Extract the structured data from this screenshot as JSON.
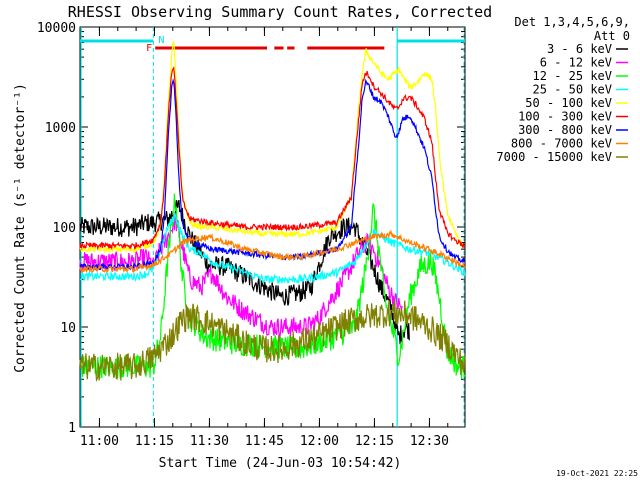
{
  "chart_data": {
    "type": "line",
    "title": "RHESSI Observing Summary Count Rates, Corrected",
    "xlabel": "Start Time (24-Jun-03 10:54:42)",
    "ylabel": "Corrected Count Rate (s⁻¹ detector⁻¹)",
    "x_ticks": [
      "11:00",
      "11:15",
      "11:30",
      "11:45",
      "12:00",
      "12:15",
      "12:30"
    ],
    "x_tick_minutes": [
      5.3,
      20.3,
      35.3,
      50.3,
      65.3,
      80.3,
      95.3
    ],
    "xlim_minutes": [
      0,
      105
    ],
    "y_scale": "log",
    "ylim": [
      1,
      10000
    ],
    "y_ticks": [
      "1",
      "10",
      "100",
      "1000",
      "10000"
    ],
    "legend_header": [
      "Det 1,3,4,5,6,9,",
      "Att 0"
    ],
    "legend_position": "right",
    "footer_date": "19-Oct-2021 22:25",
    "annotations": {
      "night_label": "N",
      "flare_label": "F"
    },
    "colors": {
      "night_bar": "#00e0e0",
      "flare_bar": "#e00000",
      "axis": "#000000",
      "background": "#ffffff"
    },
    "night_periods": [
      [
        0,
        20
      ],
      [
        86.5,
        105
      ]
    ],
    "night_boundaries": [
      20,
      86.5
    ],
    "flare_periods": [
      [
        20.5,
        51
      ],
      [
        53,
        55.5
      ],
      [
        56.5,
        58.5
      ],
      [
        62,
        83
      ]
    ],
    "series": [
      {
        "name": "3 - 6 keV",
        "color": "#000000",
        "x": [
          0,
          15,
          18,
          20,
          24,
          27,
          30,
          35,
          40,
          45,
          50,
          55,
          60,
          63,
          65,
          68,
          72,
          75,
          80,
          82,
          85,
          86,
          87,
          88,
          89,
          90
        ],
        "y": [
          100,
          100,
          110,
          110,
          120,
          160,
          80,
          42,
          40,
          32,
          25,
          20,
          22,
          25,
          40,
          80,
          100,
          100,
          40,
          25,
          15,
          10,
          8,
          9,
          10,
          9
        ]
      },
      {
        "name": "6 - 12 keV",
        "color": "#ff00ff",
        "x": [
          0,
          15,
          18,
          20,
          22,
          24,
          26,
          28,
          30,
          33,
          36,
          40,
          44,
          48,
          52,
          55,
          58,
          62,
          65,
          68,
          72,
          76,
          78,
          80,
          82,
          84,
          86,
          88
        ],
        "y": [
          45,
          45,
          50,
          40,
          60,
          80,
          120,
          60,
          30,
          25,
          35,
          20,
          15,
          12,
          10,
          10,
          10,
          10,
          12,
          18,
          30,
          55,
          70,
          60,
          40,
          25,
          18,
          15
        ]
      },
      {
        "name": "12 - 25 keV",
        "color": "#00ff00",
        "x": [
          0,
          20,
          22,
          24,
          26,
          28,
          30,
          32,
          34,
          40,
          60,
          70,
          75,
          78,
          80,
          81.5,
          83,
          85,
          86,
          87,
          88,
          90,
          93,
          96,
          98,
          100,
          103,
          105
        ],
        "y": [
          4,
          4,
          8,
          50,
          200,
          30,
          12,
          10,
          8,
          7,
          6,
          8,
          10,
          40,
          150,
          60,
          20,
          10,
          7,
          5,
          8,
          20,
          40,
          45,
          20,
          6,
          4,
          4
        ]
      },
      {
        "name": "25 - 50 keV",
        "color": "#00ffff",
        "x": [
          0,
          15,
          18,
          20,
          22,
          24,
          26,
          28,
          30,
          33,
          36,
          40,
          45,
          50,
          55,
          60,
          65,
          70,
          75,
          80,
          85,
          90,
          95,
          100,
          105
        ],
        "y": [
          32,
          32,
          34,
          38,
          60,
          100,
          130,
          80,
          60,
          55,
          45,
          40,
          35,
          30,
          30,
          30,
          32,
          35,
          45,
          90,
          70,
          60,
          55,
          45,
          35
        ]
      },
      {
        "name": "50 - 100 keV",
        "color": "#ffff00",
        "x": [
          0,
          15,
          18,
          20,
          22,
          23,
          24,
          25,
          25.5,
          26,
          27,
          28,
          30,
          33,
          36,
          40,
          45,
          50,
          55,
          60,
          65,
          70,
          74,
          76,
          77,
          78,
          79,
          80,
          81,
          82,
          84,
          86,
          87,
          88,
          90,
          92,
          94,
          96,
          97,
          98,
          100,
          102,
          105
        ],
        "y": [
          60,
          60,
          65,
          70,
          100,
          300,
          1500,
          5000,
          7500,
          4000,
          800,
          200,
          110,
          100,
          100,
          95,
          90,
          85,
          85,
          85,
          90,
          100,
          200,
          1500,
          3500,
          5800,
          5000,
          4500,
          4000,
          3500,
          3000,
          3500,
          3800,
          3200,
          2500,
          2800,
          3500,
          3000,
          1500,
          500,
          150,
          90,
          60
        ]
      },
      {
        "name": "100 - 300 keV",
        "color": "#ff0000",
        "x": [
          0,
          15,
          18,
          20,
          22,
          23,
          24,
          25,
          25.5,
          26,
          27,
          28,
          30,
          33,
          36,
          40,
          45,
          50,
          55,
          60,
          65,
          70,
          74,
          76,
          77,
          78,
          79,
          80,
          82,
          84,
          86,
          87,
          88,
          90,
          92,
          94,
          96,
          97,
          98,
          100,
          102,
          105
        ],
        "y": [
          65,
          65,
          70,
          75,
          110,
          250,
          1200,
          3500,
          4200,
          2500,
          600,
          180,
          120,
          115,
          110,
          105,
          100,
          100,
          100,
          100,
          105,
          110,
          200,
          1200,
          2800,
          3500,
          3200,
          2600,
          2200,
          1800,
          1500,
          1600,
          1900,
          2000,
          1600,
          1200,
          700,
          300,
          150,
          90,
          75,
          65
        ]
      },
      {
        "name": "300 - 800 keV",
        "color": "#0000ff",
        "x": [
          0,
          15,
          18,
          20,
          22,
          23,
          24,
          25,
          25.5,
          26,
          27,
          28,
          30,
          33,
          36,
          40,
          45,
          50,
          55,
          60,
          65,
          70,
          74,
          76,
          77,
          78,
          79,
          80,
          82,
          84,
          86,
          87,
          88,
          90,
          92,
          94,
          96,
          97,
          98,
          100,
          102,
          105
        ],
        "y": [
          40,
          40,
          42,
          45,
          60,
          120,
          700,
          2500,
          3200,
          1800,
          300,
          100,
          75,
          65,
          60,
          58,
          55,
          52,
          50,
          50,
          55,
          60,
          100,
          700,
          2000,
          2800,
          2500,
          2000,
          1800,
          1300,
          800,
          900,
          1200,
          1300,
          900,
          600,
          300,
          150,
          80,
          60,
          50,
          45
        ]
      },
      {
        "name": "800 - 7000 keV",
        "color": "#ff8000",
        "x": [
          0,
          15,
          20,
          25,
          28,
          30,
          35,
          40,
          45,
          50,
          55,
          60,
          65,
          70,
          75,
          80,
          85,
          90,
          95,
          100,
          105
        ],
        "y": [
          38,
          38,
          42,
          55,
          70,
          75,
          80,
          70,
          60,
          55,
          50,
          50,
          55,
          60,
          70,
          80,
          85,
          70,
          60,
          50,
          40
        ]
      },
      {
        "name": "7000 - 15000 keV",
        "color": "#808000",
        "x": [
          0,
          15,
          20,
          25,
          28,
          30,
          35,
          40,
          45,
          50,
          55,
          60,
          65,
          70,
          75,
          80,
          85,
          90,
          95,
          100,
          103,
          105
        ],
        "y": [
          4,
          4,
          5,
          8,
          12,
          13,
          11,
          9,
          7,
          6,
          6,
          7,
          8,
          10,
          12,
          13,
          14,
          13,
          10,
          7,
          5,
          4
        ]
      }
    ]
  }
}
